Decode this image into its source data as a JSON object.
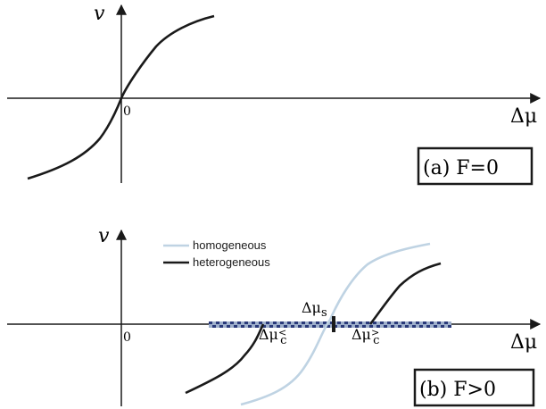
{
  "panels": {
    "a": {
      "y_axis_label": "v",
      "x_axis_label": "Δμ",
      "origin_label": "0",
      "panel_label": "(a) F=0"
    },
    "b": {
      "y_axis_label": "v",
      "x_axis_label": "Δμ",
      "origin_label": "0",
      "panel_label": "(b) F>0",
      "legend": {
        "homogeneous": "homogeneous",
        "heterogeneous": "heterogeneous"
      },
      "annotations": {
        "delta_mu_s": {
          "base": "Δμ",
          "sub": "s"
        },
        "delta_mu_c_lt": {
          "base": "Δμ",
          "sub": "c",
          "sup": "<"
        },
        "delta_mu_c_gt": {
          "base": "Δμ",
          "sub": "c",
          "sup": ">"
        }
      }
    }
  },
  "colors": {
    "axes": "#1a1a1a",
    "homogeneous": "#bfd3e3",
    "heterogeneous": "#1a1a1a",
    "dashed_band_dark": "#2a3a7a",
    "dashed_band_light": "#9fb0cc"
  }
}
